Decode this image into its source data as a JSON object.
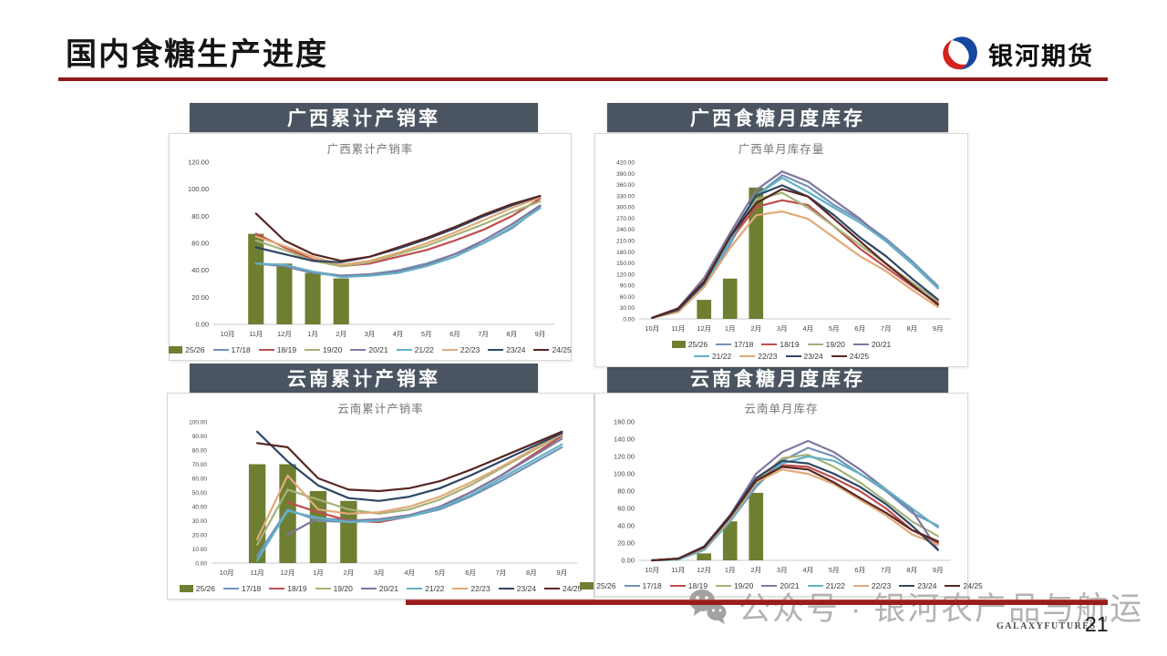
{
  "page": {
    "title": "国内食糖生产进度",
    "logo_text": "银河期货",
    "watermark": "公众号 · 银河农产品与航运",
    "footer_brand": "GALAXYFUTURES",
    "page_number": "21"
  },
  "colors": {
    "accent_red": "#8f1a1a",
    "header_bar": "#4a5561",
    "bar_green": "#6e7f32",
    "logo_blue": "#16479e",
    "logo_red": "#d2231f",
    "watermark_gray": "#b3b3b3"
  },
  "chart_data": [
    {
      "type": "bar+line",
      "header": "广西累计产销率",
      "inner_title": "广西累计产销率",
      "xlabel": "",
      "ylabel": "",
      "x_labels": [
        "10月",
        "11月",
        "12月",
        "1月",
        "2月",
        "3月",
        "4月",
        "5月",
        "6月",
        "7月",
        "8月",
        "9月"
      ],
      "ylim": [
        0,
        120
      ],
      "ytick_step": 20,
      "grid": false,
      "bar_series": {
        "name": "25/26",
        "color": "#6e7f32",
        "values": [
          null,
          67,
          45,
          38,
          34,
          null,
          null,
          null,
          null,
          null,
          null,
          null
        ]
      },
      "line_series": [
        {
          "name": "17/18",
          "color": "#7293b8",
          "values": [
            null,
            45,
            44,
            39,
            36,
            37,
            40,
            45,
            52,
            60,
            71,
            87
          ]
        },
        {
          "name": "18/19",
          "color": "#bf4d4d",
          "values": [
            null,
            67,
            57,
            48,
            43,
            45,
            50,
            55,
            62,
            70,
            80,
            93
          ]
        },
        {
          "name": "19/20",
          "color": "#a6b279",
          "values": [
            null,
            62,
            55,
            47,
            43,
            46,
            52,
            58,
            66,
            74,
            83,
            91
          ]
        },
        {
          "name": "20/21",
          "color": "#80779f",
          "values": [
            null,
            45,
            43,
            38,
            36,
            37,
            39,
            44,
            52,
            62,
            74,
            88
          ]
        },
        {
          "name": "21/22",
          "color": "#62b1c7",
          "values": [
            null,
            45,
            44,
            39,
            35,
            36,
            38,
            43,
            50,
            60,
            72,
            86
          ]
        },
        {
          "name": "22/23",
          "color": "#e0aa78",
          "values": [
            null,
            65,
            58,
            50,
            44,
            47,
            53,
            60,
            68,
            77,
            86,
            94
          ]
        },
        {
          "name": "23/24",
          "color": "#2e4764",
          "values": [
            null,
            57,
            52,
            47,
            46,
            50,
            56,
            63,
            71,
            80,
            88,
            95
          ]
        },
        {
          "name": "24/25",
          "color": "#582723",
          "values": [
            null,
            82,
            62,
            52,
            47,
            50,
            57,
            64,
            72,
            81,
            89,
            95
          ]
        }
      ],
      "legend_rows": [
        [
          "25/26",
          "17/18",
          "18/19",
          "19/20",
          "20/21",
          "21/22",
          "22/23",
          "23/24",
          "24/25"
        ]
      ]
    },
    {
      "type": "bar+line",
      "header": "广西食糖月度库存",
      "inner_title": "广西单月库存量",
      "xlabel": "",
      "ylabel": "",
      "x_labels": [
        "10月",
        "11月",
        "12月",
        "1月",
        "2月",
        "3月",
        "4月",
        "5月",
        "6月",
        "7月",
        "8月",
        "9月"
      ],
      "ylim": [
        0,
        420
      ],
      "ytick_step": 30,
      "grid": false,
      "bar_series": {
        "name": "25/26",
        "color": "#6e7f32",
        "values": [
          null,
          null,
          51,
          108,
          352,
          null,
          null,
          null,
          null,
          null,
          null,
          null
        ]
      },
      "line_series": [
        {
          "name": "17/18",
          "color": "#7293b8",
          "values": [
            3,
            22,
            90,
            200,
            330,
            385,
            355,
            305,
            265,
            215,
            155,
            88
          ]
        },
        {
          "name": "18/19",
          "color": "#bf4d4d",
          "values": [
            3,
            28,
            100,
            210,
            300,
            318,
            305,
            248,
            188,
            138,
            88,
            42
          ]
        },
        {
          "name": "19/20",
          "color": "#a6b279",
          "values": [
            3,
            24,
            95,
            215,
            320,
            338,
            298,
            248,
            198,
            148,
            98,
            48
          ]
        },
        {
          "name": "20/21",
          "color": "#80779f",
          "values": [
            3,
            28,
            110,
            230,
            345,
            395,
            368,
            318,
            268,
            208,
            148,
            82
          ]
        },
        {
          "name": "21/22",
          "color": "#62b1c7",
          "values": [
            3,
            22,
            88,
            208,
            330,
            378,
            340,
            298,
            258,
            208,
            148,
            82
          ]
        },
        {
          "name": "22/23",
          "color": "#e0aa78",
          "values": [
            3,
            18,
            85,
            190,
            278,
            288,
            268,
            218,
            168,
            128,
            78,
            32
          ]
        },
        {
          "name": "23/24",
          "color": "#2e4764",
          "values": [
            3,
            24,
            95,
            220,
            330,
            358,
            328,
            278,
            218,
            168,
            108,
            52
          ]
        },
        {
          "name": "24/25",
          "color": "#582723",
          "values": [
            3,
            28,
            100,
            220,
            310,
            348,
            328,
            268,
            208,
            148,
            92,
            38
          ]
        }
      ],
      "legend_rows": [
        [
          "25/26",
          "17/18",
          "18/19",
          "19/20",
          "20/21"
        ],
        [
          "21/22",
          "22/23",
          "23/24",
          "24/25"
        ]
      ]
    },
    {
      "type": "bar+line",
      "header": "云南累计产销率",
      "inner_title": "云南累计产销率",
      "xlabel": "",
      "ylabel": "",
      "x_labels": [
        "10月",
        "11月",
        "12月",
        "1月",
        "2月",
        "3月",
        "4月",
        "5月",
        "6月",
        "7月",
        "8月",
        "9月"
      ],
      "ylim": [
        0,
        100
      ],
      "ytick_step": 10,
      "grid": false,
      "bar_series": {
        "name": "25/26",
        "color": "#6e7f32",
        "values": [
          null,
          70,
          70,
          51,
          44,
          null,
          null,
          null,
          null,
          null,
          null,
          null
        ]
      },
      "line_series": [
        {
          "name": "17/18",
          "color": "#7293b8",
          "values": [
            null,
            5,
            38,
            30,
            29,
            30,
            33,
            38,
            47,
            58,
            70,
            82
          ]
        },
        {
          "name": "18/19",
          "color": "#bf4d4d",
          "values": [
            null,
            null,
            43,
            36,
            30,
            29,
            33,
            40,
            50,
            62,
            76,
            90
          ]
        },
        {
          "name": "19/20",
          "color": "#a6b279",
          "values": [
            null,
            13,
            52,
            45,
            38,
            35,
            38,
            45,
            55,
            67,
            79,
            91
          ]
        },
        {
          "name": "20/21",
          "color": "#80779f",
          "values": [
            null,
            null,
            20,
            32,
            30,
            31,
            34,
            40,
            50,
            62,
            75,
            88
          ]
        },
        {
          "name": "21/22",
          "color": "#62b1c7",
          "values": [
            null,
            2,
            37,
            32,
            29,
            30,
            33,
            39,
            48,
            60,
            72,
            84
          ]
        },
        {
          "name": "22/23",
          "color": "#e0aa78",
          "values": [
            null,
            17,
            62,
            38,
            35,
            36,
            40,
            47,
            57,
            68,
            80,
            92
          ]
        },
        {
          "name": "23/24",
          "color": "#2e4764",
          "values": [
            null,
            93,
            72,
            55,
            46,
            44,
            47,
            53,
            62,
            72,
            82,
            92
          ]
        },
        {
          "name": "24/25",
          "color": "#582723",
          "values": [
            null,
            85,
            82,
            60,
            52,
            51,
            53,
            58,
            66,
            75,
            84,
            93
          ]
        }
      ],
      "legend_rows": [
        [
          "25/26",
          "17/18",
          "18/19",
          "19/20",
          "20/21",
          "21/22",
          "22/23",
          "23/24",
          "24/25"
        ]
      ]
    },
    {
      "type": "bar+line",
      "header": "云南食糖月度库存",
      "inner_title": "云南单月库存",
      "xlabel": "",
      "ylabel": "",
      "x_labels": [
        "10月",
        "11月",
        "12月",
        "1月",
        "2月",
        "3月",
        "4月",
        "5月",
        "6月",
        "7月",
        "8月",
        "9月"
      ],
      "ylim": [
        0,
        160
      ],
      "ytick_step": 20,
      "grid": false,
      "bar_series": {
        "name": "25/26",
        "color": "#6e7f32",
        "values": [
          null,
          null,
          8,
          45,
          78,
          null,
          null,
          null,
          null,
          null,
          null,
          null
        ]
      },
      "line_series": [
        {
          "name": "17/18",
          "color": "#7293b8",
          "values": [
            0,
            1,
            12,
            45,
            85,
            115,
            130,
            120,
            100,
            80,
            55,
            40
          ]
        },
        {
          "name": "18/19",
          "color": "#bf4d4d",
          "values": [
            0,
            2,
            15,
            50,
            95,
            110,
            108,
            95,
            80,
            60,
            35,
            20
          ]
        },
        {
          "name": "19/20",
          "color": "#a6b279",
          "values": [
            0,
            1,
            14,
            48,
            90,
            118,
            122,
            108,
            90,
            68,
            45,
            28
          ]
        },
        {
          "name": "20/21",
          "color": "#80779f",
          "values": [
            0,
            2,
            15,
            52,
            100,
            125,
            138,
            125,
            105,
            82,
            58,
            12
          ]
        },
        {
          "name": "21/22",
          "color": "#62b1c7",
          "values": [
            0,
            1,
            12,
            45,
            88,
            112,
            120,
            115,
            100,
            82,
            60,
            38
          ]
        },
        {
          "name": "22/23",
          "color": "#e0aa78",
          "values": [
            0,
            2,
            14,
            48,
            90,
            105,
            100,
            88,
            70,
            52,
            30,
            18
          ]
        },
        {
          "name": "23/24",
          "color": "#2e4764",
          "values": [
            0,
            2,
            16,
            52,
            95,
            115,
            112,
            100,
            85,
            65,
            40,
            12
          ]
        },
        {
          "name": "24/25",
          "color": "#582723",
          "values": [
            0,
            2,
            15,
            50,
            92,
            108,
            105,
            90,
            72,
            55,
            35,
            22
          ]
        }
      ],
      "legend_rows": [
        [
          "25/26",
          "17/18",
          "18/19",
          "19/20",
          "20/21",
          "21/22",
          "22/23",
          "23/24",
          "24/25"
        ]
      ]
    }
  ]
}
